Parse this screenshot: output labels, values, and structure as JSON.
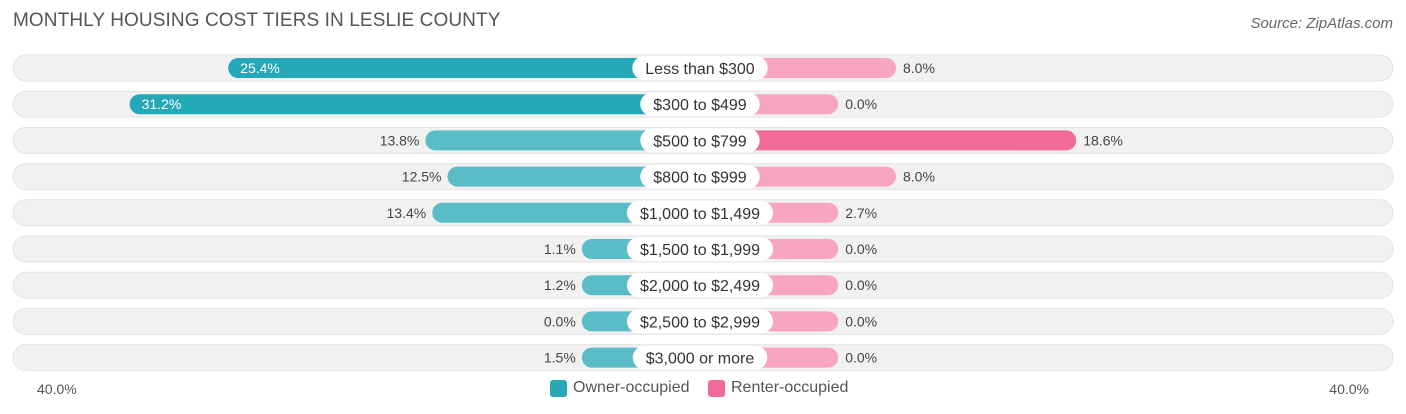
{
  "title": "MONTHLY HOUSING COST TIERS IN LESLIE COUNTY",
  "source": "Source: ZipAtlas.com",
  "colors": {
    "owner": "#5bbcc8",
    "owner_strong": "#25a8b8",
    "renter": "#f7a5c0",
    "renter_strong": "#f06b96",
    "track": "#f1f1f1"
  },
  "legend": [
    {
      "label": "Owner-occupied",
      "color": "#2aa7b6"
    },
    {
      "label": "Renter-occupied",
      "color": "#f06b96"
    }
  ],
  "chart_data": {
    "type": "bar",
    "orientation": "horizontal-diverging",
    "axis_min_label": "40.0%",
    "axis_max_label": "40.0%",
    "xlim": [
      -40,
      40
    ],
    "categories": [
      "Less than $300",
      "$300 to $499",
      "$500 to $799",
      "$800 to $999",
      "$1,000 to $1,499",
      "$1,500 to $1,999",
      "$2,000 to $2,499",
      "$2,500 to $2,999",
      "$3,000 or more"
    ],
    "series": [
      {
        "name": "Owner-occupied",
        "values": [
          25.4,
          31.2,
          13.8,
          12.5,
          13.4,
          1.1,
          1.2,
          0.0,
          1.5
        ],
        "labels": [
          "25.4%",
          "31.2%",
          "13.8%",
          "12.5%",
          "13.4%",
          "1.1%",
          "1.2%",
          "0.0%",
          "1.5%"
        ]
      },
      {
        "name": "Renter-occupied",
        "values": [
          8.0,
          0.0,
          18.6,
          8.0,
          2.7,
          0.0,
          0.0,
          0.0,
          0.0
        ],
        "labels": [
          "8.0%",
          "0.0%",
          "18.6%",
          "8.0%",
          "2.7%",
          "0.0%",
          "0.0%",
          "0.0%",
          "0.0%"
        ]
      }
    ]
  }
}
